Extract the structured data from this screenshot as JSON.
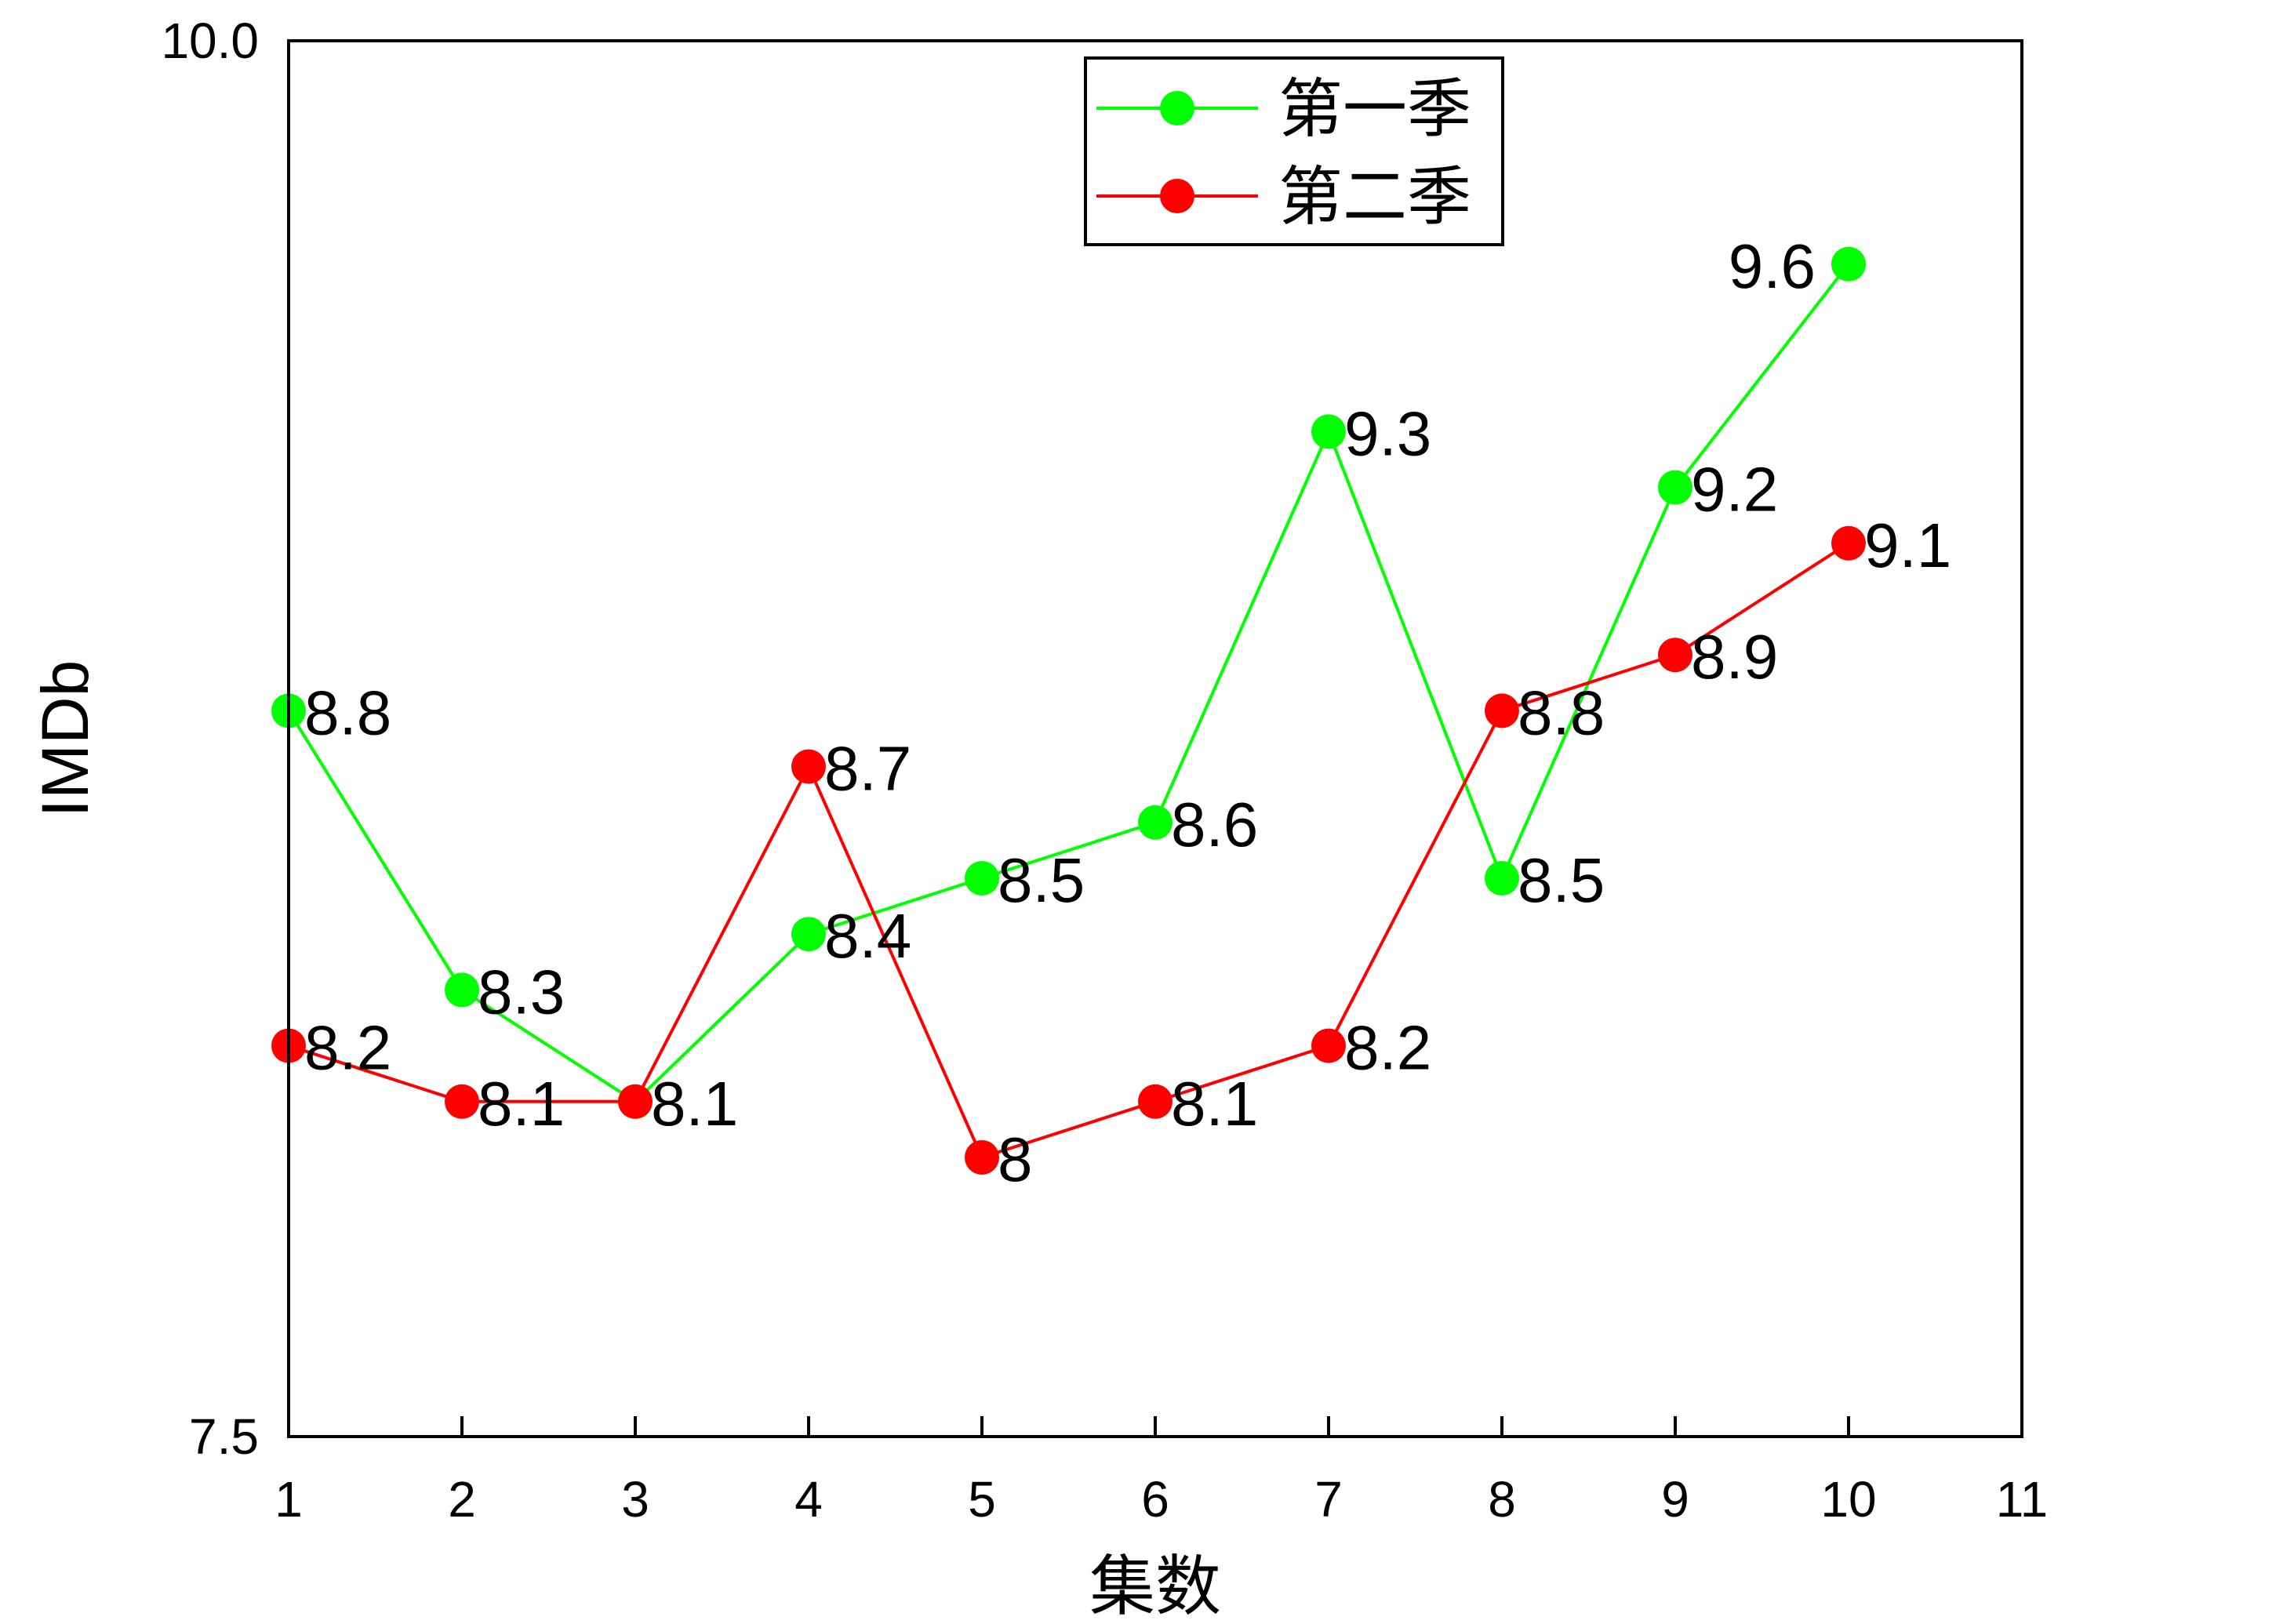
{
  "chart_data": {
    "type": "line",
    "title": "",
    "xlabel": "集数",
    "ylabel": "IMDb",
    "xlim": [
      1,
      11
    ],
    "ylim": [
      7.5,
      10.0
    ],
    "x_ticks": [
      "1",
      "2",
      "3",
      "4",
      "5",
      "6",
      "7",
      "8",
      "9",
      "10",
      "11"
    ],
    "y_ticks": [
      "7.5",
      "10.0"
    ],
    "grid": false,
    "legend_position": "top-center",
    "x": [
      1,
      2,
      3,
      4,
      5,
      6,
      7,
      8,
      9,
      10
    ],
    "series": [
      {
        "name": "第一季",
        "color": "#00ff00",
        "values": [
          8.8,
          8.3,
          8.1,
          8.4,
          8.5,
          8.6,
          9.3,
          8.5,
          9.2,
          9.6
        ],
        "labels": [
          "8.8",
          "8.3",
          "8.1",
          "8.4",
          "8.5",
          "8.6",
          "9.3",
          "8.5",
          "9.2",
          "9.6"
        ]
      },
      {
        "name": "第二季",
        "color": "#ff0000",
        "values": [
          8.2,
          8.1,
          8.1,
          8.7,
          8.0,
          8.1,
          8.2,
          8.8,
          8.9,
          9.1
        ],
        "labels": [
          "8.2",
          "8.1",
          "",
          "8.7",
          "8",
          "8.1",
          "8.2",
          "8.8",
          "8.9",
          "9.1"
        ]
      }
    ]
  }
}
